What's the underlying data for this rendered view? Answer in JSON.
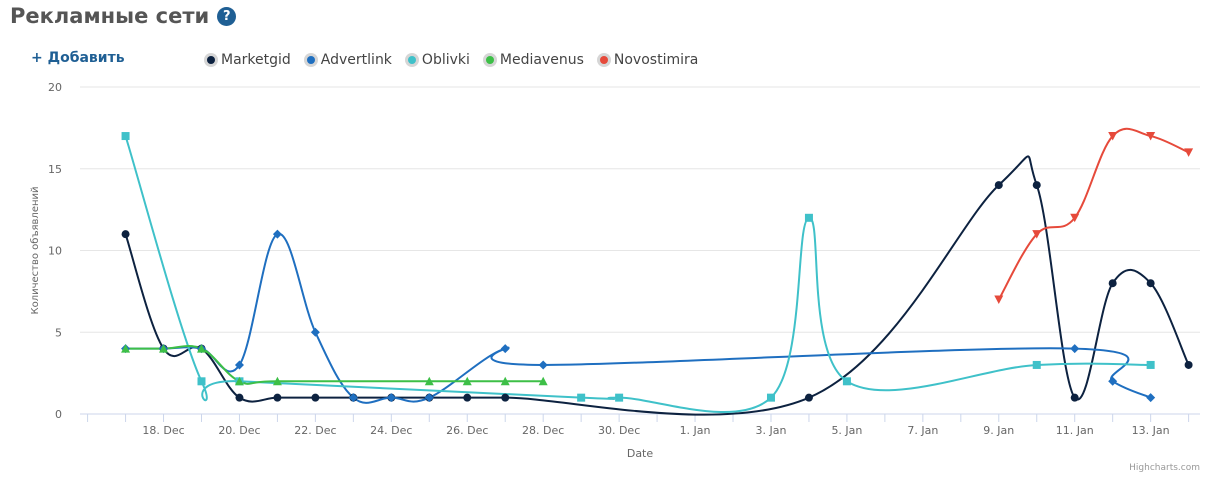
{
  "header": {
    "title": "Рекламные сети",
    "help_icon": "question-mark-icon"
  },
  "toolbar": {
    "add_label": "+ Добавить"
  },
  "credits": "Highcharts.com",
  "chart_data": {
    "type": "line",
    "xlabel": "Date",
    "ylabel": "Количество объявлений",
    "ylim": [
      0,
      20
    ],
    "yticks": [
      0,
      5,
      10,
      15,
      20
    ],
    "x_range": [
      "2016-12-16",
      "2017-01-14"
    ],
    "xticks": [
      {
        "date": "2016-12-18",
        "label": "18. Dec"
      },
      {
        "date": "2016-12-20",
        "label": "20. Dec"
      },
      {
        "date": "2016-12-22",
        "label": "22. Dec"
      },
      {
        "date": "2016-12-24",
        "label": "24. Dec"
      },
      {
        "date": "2016-12-26",
        "label": "26. Dec"
      },
      {
        "date": "2016-12-28",
        "label": "28. Dec"
      },
      {
        "date": "2016-12-30",
        "label": "30. Dec"
      },
      {
        "date": "2017-01-01",
        "label": "1. Jan"
      },
      {
        "date": "2017-01-03",
        "label": "3. Jan"
      },
      {
        "date": "2017-01-05",
        "label": "5. Jan"
      },
      {
        "date": "2017-01-07",
        "label": "7. Jan"
      },
      {
        "date": "2017-01-09",
        "label": "9. Jan"
      },
      {
        "date": "2017-01-11",
        "label": "11. Jan"
      },
      {
        "date": "2017-01-13",
        "label": "13. Jan"
      }
    ],
    "grid": true,
    "legend_position": "top",
    "series": [
      {
        "name": "Marketgid",
        "color": "#0d2240",
        "marker": "circle",
        "points": [
          [
            "2016-12-17",
            11
          ],
          [
            "2016-12-18",
            4
          ],
          [
            "2016-12-19",
            4
          ],
          [
            "2016-12-20",
            1
          ],
          [
            "2016-12-21",
            1
          ],
          [
            "2016-12-22",
            1
          ],
          [
            "2016-12-23",
            1
          ],
          [
            "2016-12-24",
            1
          ],
          [
            "2016-12-25",
            1
          ],
          [
            "2016-12-26",
            1
          ],
          [
            "2016-12-27",
            1
          ],
          [
            "2017-01-04",
            1
          ],
          [
            "2017-01-09",
            14
          ],
          [
            "2017-01-10",
            14
          ],
          [
            "2017-01-11",
            1
          ],
          [
            "2017-01-12",
            8
          ],
          [
            "2017-01-13",
            8
          ],
          [
            "2017-01-14",
            3
          ]
        ]
      },
      {
        "name": "Advertlink",
        "color": "#1f6fc0",
        "marker": "diamond",
        "points": [
          [
            "2016-12-17",
            4
          ],
          [
            "2016-12-18",
            4
          ],
          [
            "2016-12-19",
            4
          ],
          [
            "2016-12-20",
            3
          ],
          [
            "2016-12-21",
            11
          ],
          [
            "2016-12-22",
            5
          ],
          [
            "2016-12-23",
            1
          ],
          [
            "2016-12-24",
            1
          ],
          [
            "2016-12-25",
            1
          ],
          [
            "2016-12-27",
            4
          ],
          [
            "2016-12-28",
            3
          ],
          [
            "2017-01-11",
            4
          ],
          [
            "2017-01-12",
            2
          ],
          [
            "2017-01-13",
            1
          ]
        ]
      },
      {
        "name": "Oblivki",
        "color": "#3fc1c9",
        "marker": "square",
        "points": [
          [
            "2016-12-17",
            17
          ],
          [
            "2016-12-19",
            2
          ],
          [
            "2016-12-20",
            2
          ],
          [
            "2016-12-29",
            1
          ],
          [
            "2016-12-30",
            1
          ],
          [
            "2017-01-03",
            1
          ],
          [
            "2017-01-04",
            12
          ],
          [
            "2017-01-05",
            2
          ],
          [
            "2017-01-10",
            3
          ],
          [
            "2017-01-13",
            3
          ]
        ]
      },
      {
        "name": "Mediavenus",
        "color": "#3dbf47",
        "marker": "triangle",
        "points": [
          [
            "2016-12-17",
            4
          ],
          [
            "2016-12-18",
            4
          ],
          [
            "2016-12-19",
            4
          ],
          [
            "2016-12-20",
            2
          ],
          [
            "2016-12-21",
            2
          ],
          [
            "2016-12-25",
            2
          ],
          [
            "2016-12-26",
            2
          ],
          [
            "2016-12-27",
            2
          ],
          [
            "2016-12-28",
            2
          ]
        ]
      },
      {
        "name": "Novostimira",
        "color": "#e64a3b",
        "marker": "triangle-down",
        "points": [
          [
            "2017-01-09",
            7
          ],
          [
            "2017-01-10",
            11
          ],
          [
            "2017-01-11",
            12
          ],
          [
            "2017-01-12",
            17
          ],
          [
            "2017-01-13",
            17
          ],
          [
            "2017-01-14",
            16
          ]
        ]
      }
    ]
  }
}
